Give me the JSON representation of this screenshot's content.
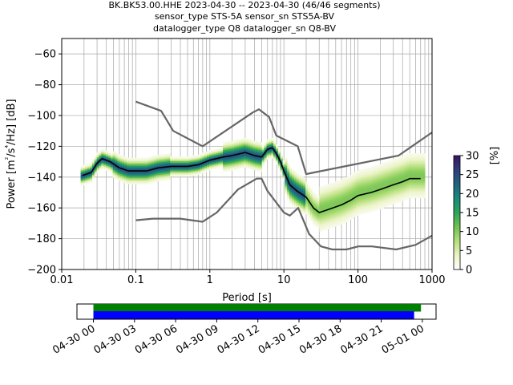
{
  "title_lines": [
    "BK.BK53.00.HHE   2023-04-30 -- 2023-04-30  (46/46 segments)",
    "sensor_type STS-5A sensor_sn STS5A-BV",
    "datalogger_type Q8 datalogger_sn Q8-BV"
  ],
  "chart_data": [
    {
      "type": "heatmap",
      "xlabel": "Period [s]",
      "ylabel": "Power [m²/s⁴/Hz] [dB]",
      "xscale": "log",
      "xlim": [
        0.01,
        1000
      ],
      "ylim": [
        -200,
        -50
      ],
      "xticks": [
        0.01,
        0.1,
        1,
        10,
        100,
        1000
      ],
      "xticklabels": [
        "0.01",
        "0.1",
        "1",
        "10",
        "100",
        "1000"
      ],
      "yticks": [
        -200,
        -180,
        -160,
        -140,
        -120,
        -100,
        -80,
        -60
      ],
      "grid": true,
      "colorbar": {
        "label": "[%]",
        "range": [
          0,
          30
        ],
        "ticks": [
          0,
          5,
          10,
          15,
          20,
          25,
          30
        ],
        "colormap": [
          "#ffffff",
          "#eaf3c4",
          "#b4df7a",
          "#6fc24f",
          "#2fa35a",
          "#1b8a7a",
          "#23627f",
          "#2c3f7e",
          "#3a1460"
        ]
      },
      "mode_line": {
        "color": "#000000",
        "points": [
          [
            0.019,
            -139
          ],
          [
            0.025,
            -137
          ],
          [
            0.03,
            -131
          ],
          [
            0.035,
            -128
          ],
          [
            0.045,
            -130
          ],
          [
            0.06,
            -134
          ],
          [
            0.08,
            -136
          ],
          [
            0.1,
            -136
          ],
          [
            0.14,
            -136
          ],
          [
            0.2,
            -134
          ],
          [
            0.3,
            -133
          ],
          [
            0.5,
            -133
          ],
          [
            0.7,
            -132
          ],
          [
            1,
            -129
          ],
          [
            1.5,
            -127
          ],
          [
            2,
            -126
          ],
          [
            3,
            -124
          ],
          [
            4,
            -126
          ],
          [
            5,
            -127
          ],
          [
            6,
            -122
          ],
          [
            7,
            -121
          ],
          [
            8,
            -125
          ],
          [
            9,
            -130
          ],
          [
            10,
            -136
          ],
          [
            12,
            -145
          ],
          [
            15,
            -149
          ],
          [
            20,
            -153
          ],
          [
            25,
            -160
          ],
          [
            30,
            -163
          ],
          [
            40,
            -161
          ],
          [
            60,
            -158
          ],
          [
            80,
            -155
          ],
          [
            100,
            -152
          ],
          [
            150,
            -150
          ],
          [
            200,
            -148
          ],
          [
            300,
            -145
          ],
          [
            400,
            -143
          ],
          [
            500,
            -141
          ],
          [
            700,
            -141
          ]
        ]
      },
      "noise_models": [
        {
          "name": "",
          "color": "#666666",
          "points": [
            [
              0.1,
              -91
            ],
            [
              0.22,
              -97
            ],
            [
              0.32,
              -110
            ],
            [
              0.8,
              -120
            ],
            [
              3.8,
              -98
            ],
            [
              4.6,
              -96
            ],
            [
              6.3,
              -101
            ],
            [
              7.9,
              -113
            ],
            [
              15.4,
              -120
            ],
            [
              20,
              -138
            ],
            [
              354,
              -126
            ],
            [
              1000,
              -111
            ]
          ]
        },
        {
          "name": "",
          "color": "#666666",
          "points": [
            [
              0.1,
              -168
            ],
            [
              0.17,
              -167
            ],
            [
              0.4,
              -167
            ],
            [
              0.8,
              -169
            ],
            [
              1.24,
              -163
            ],
            [
              2.4,
              -148
            ],
            [
              4.3,
              -141
            ],
            [
              5,
              -141
            ],
            [
              6,
              -149
            ],
            [
              10,
              -163
            ],
            [
              12,
              -165
            ],
            [
              15.6,
              -160
            ],
            [
              21.9,
              -177
            ],
            [
              31.6,
              -185
            ],
            [
              45,
              -187
            ],
            [
              70,
              -187
            ],
            [
              101,
              -185
            ],
            [
              154,
              -185
            ],
            [
              328,
              -187
            ],
            [
              600,
              -184
            ],
            [
              1000,
              -178
            ]
          ]
        }
      ]
    },
    {
      "type": "bar",
      "xticklabels": [
        "04-30 00",
        "04-30 03",
        "04-30 06",
        "04-30 09",
        "04-30 12",
        "04-30 15",
        "04-30 18",
        "04-30 21",
        "05-01 00"
      ],
      "xrange_hours": [
        -1.2,
        25.0
      ],
      "bars": [
        {
          "color": "#008000",
          "start_hour": 0.0,
          "end_hour": 23.9
        },
        {
          "color": "#0000ff",
          "start_hour": 0.0,
          "end_hour": 23.4
        }
      ]
    }
  ]
}
